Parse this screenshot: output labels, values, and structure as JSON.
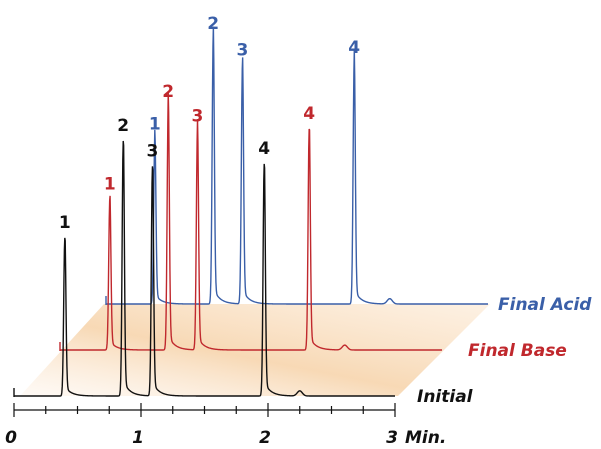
{
  "chart_data": {
    "type": "line",
    "title": "",
    "xlabel": "Min.",
    "ylabel": "",
    "xlim": [
      0,
      3
    ],
    "x_ticks": [
      0,
      1,
      2,
      3
    ],
    "x_tick_labels": [
      "0",
      "1",
      "2",
      "3"
    ],
    "x_unit_label": "Min.",
    "grid": false,
    "legend": "inline, right end of each trace",
    "series": [
      {
        "name": "Initial",
        "color": "#111111",
        "peaks": [
          {
            "label": "1",
            "time": 0.4,
            "height": 0.62
          },
          {
            "label": "2",
            "time": 0.86,
            "height": 1.0
          },
          {
            "label": "3",
            "time": 1.09,
            "height": 0.9
          },
          {
            "label": "4",
            "time": 1.97,
            "height": 0.91
          }
        ]
      },
      {
        "name": "Final Base",
        "color": "#c0282d",
        "peaks": [
          {
            "label": "1",
            "time": 0.4,
            "height": 0.62
          },
          {
            "label": "2",
            "time": 0.86,
            "height": 1.0
          },
          {
            "label": "3",
            "time": 1.09,
            "height": 0.9
          },
          {
            "label": "4",
            "time": 1.97,
            "height": 0.91
          }
        ]
      },
      {
        "name": "Final Acid",
        "color": "#3a5fa8",
        "peaks": [
          {
            "label": "1",
            "time": 0.4,
            "height": 0.62
          },
          {
            "label": "2",
            "time": 0.86,
            "height": 1.0
          },
          {
            "label": "3",
            "time": 1.09,
            "height": 0.9
          },
          {
            "label": "4",
            "time": 1.97,
            "height": 0.91
          }
        ]
      }
    ]
  },
  "colors": {
    "initial": "#111111",
    "final_base": "#c0282d",
    "final_acid": "#3a5fa8",
    "plane": "#f3c99a",
    "axis": "#111111"
  }
}
